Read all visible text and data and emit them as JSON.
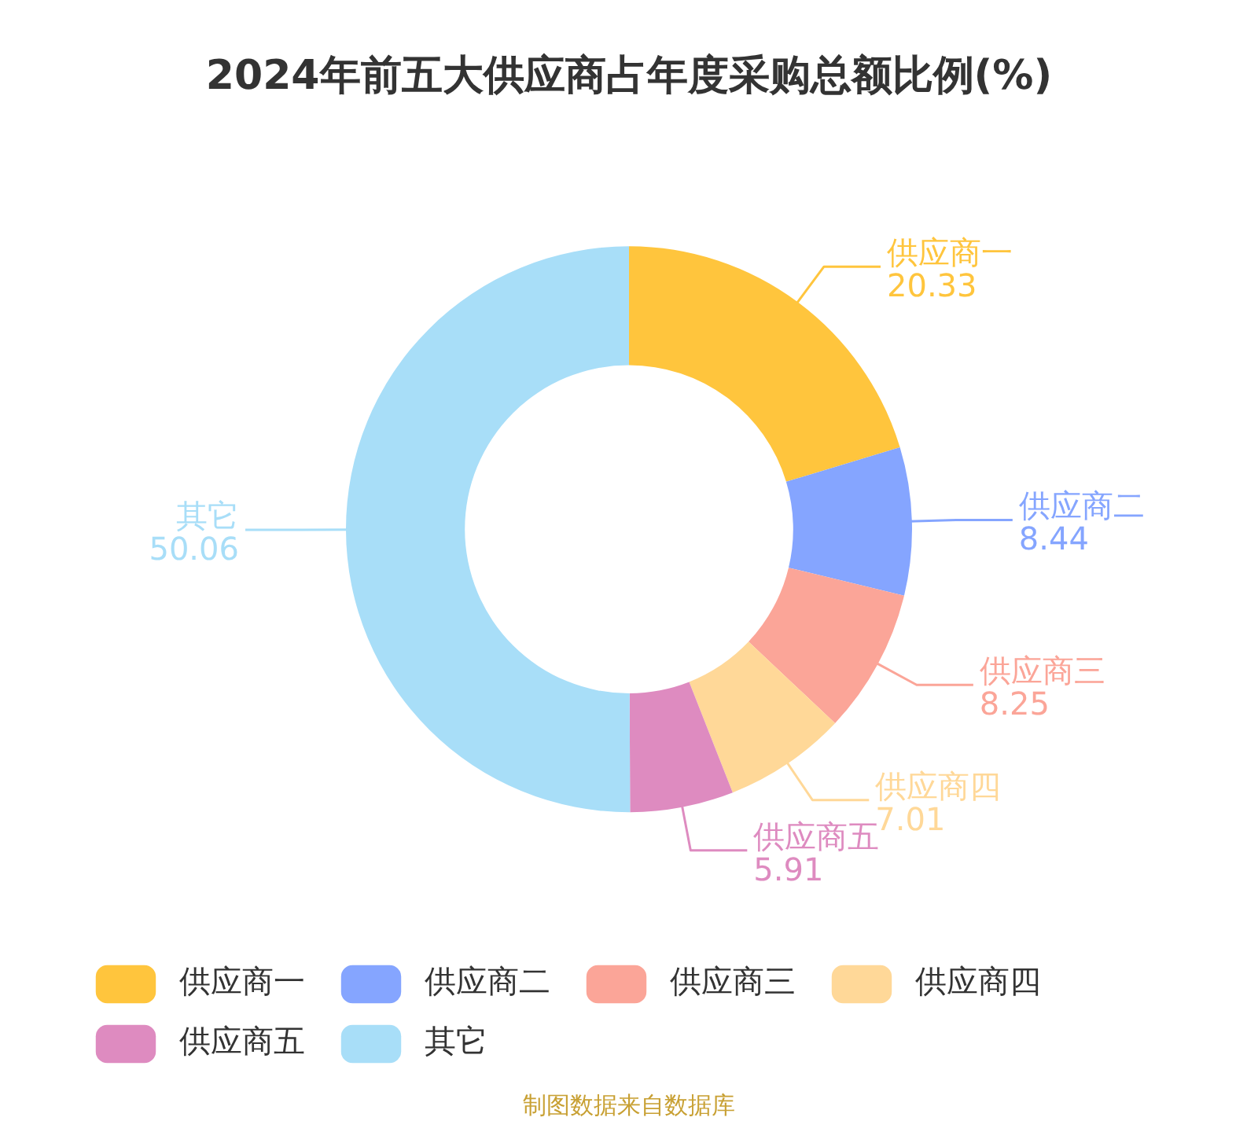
{
  "chart_data": {
    "type": "donut",
    "title": "2024年前五大供应商占年度采购总额比例(%)",
    "categories": [
      "供应商一",
      "供应商二",
      "供应商三",
      "供应商四",
      "供应商五",
      "其它"
    ],
    "values": [
      20.33,
      8.44,
      8.25,
      7.01,
      5.91,
      50.06
    ],
    "colors": [
      "#ffc53d",
      "#85a5ff",
      "#fba598",
      "#ffd898",
      "#de8bc0",
      "#a8def8"
    ],
    "data_labels": true,
    "legend": "bottom",
    "annotations": [
      "制图数据来自数据库"
    ]
  }
}
